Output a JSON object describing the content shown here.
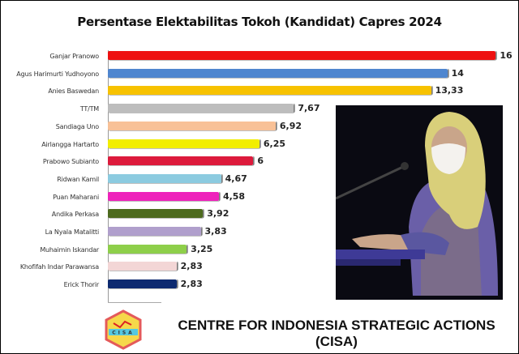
{
  "chart_data": {
    "type": "bar",
    "orientation": "horizontal",
    "title": "Persentase Elektabilitas Tokoh (Kandidat) Capres 2024",
    "xlabel": "",
    "ylabel": "",
    "grid": false,
    "legend": null,
    "categories": [
      "Ganjar Pranowo",
      "Agus Harimurti Yudhoyono",
      "Anies Baswedan",
      "TT/TM",
      "Sandiaga Uno",
      "Airlangga Hartarto",
      "Prabowo Subianto",
      "Ridwan Kamil",
      "Puan Maharani",
      "Andika Perkasa",
      "La Nyala Matalitti",
      "Muhaimin Iskandar",
      "Khofifah Indar Parawansa",
      "Erick Thorir"
    ],
    "values": [
      16,
      14,
      13.33,
      7.67,
      6.92,
      6.25,
      6,
      4.67,
      4.58,
      3.92,
      3.83,
      3.25,
      2.83,
      2.83
    ],
    "value_labels": [
      "16",
      "14",
      "13,33",
      "7,67",
      "6,92",
      "6,25",
      "6",
      "4,67",
      "4,58",
      "3,92",
      "3,83",
      "3,25",
      "2,83",
      "2,83"
    ],
    "colors": [
      "#ee1111",
      "#4f86cf",
      "#f7c200",
      "#bdbdbd",
      "#f8c197",
      "#f2ee00",
      "#dd1a3c",
      "#8ccbe0",
      "#ee22bb",
      "#4d6a1e",
      "#b09fcc",
      "#8ecf4a",
      "#f3d6d6",
      "#0d2a70"
    ]
  },
  "footer": {
    "line1": "CENTRE FOR INDONESIA STRATEGIC ACTIONS",
    "line2": "(CISA)",
    "logo_text": "CISA"
  },
  "photo": {
    "description": "woman-in-yellow-hijab-and-white-mask-speaking-at-podium"
  }
}
